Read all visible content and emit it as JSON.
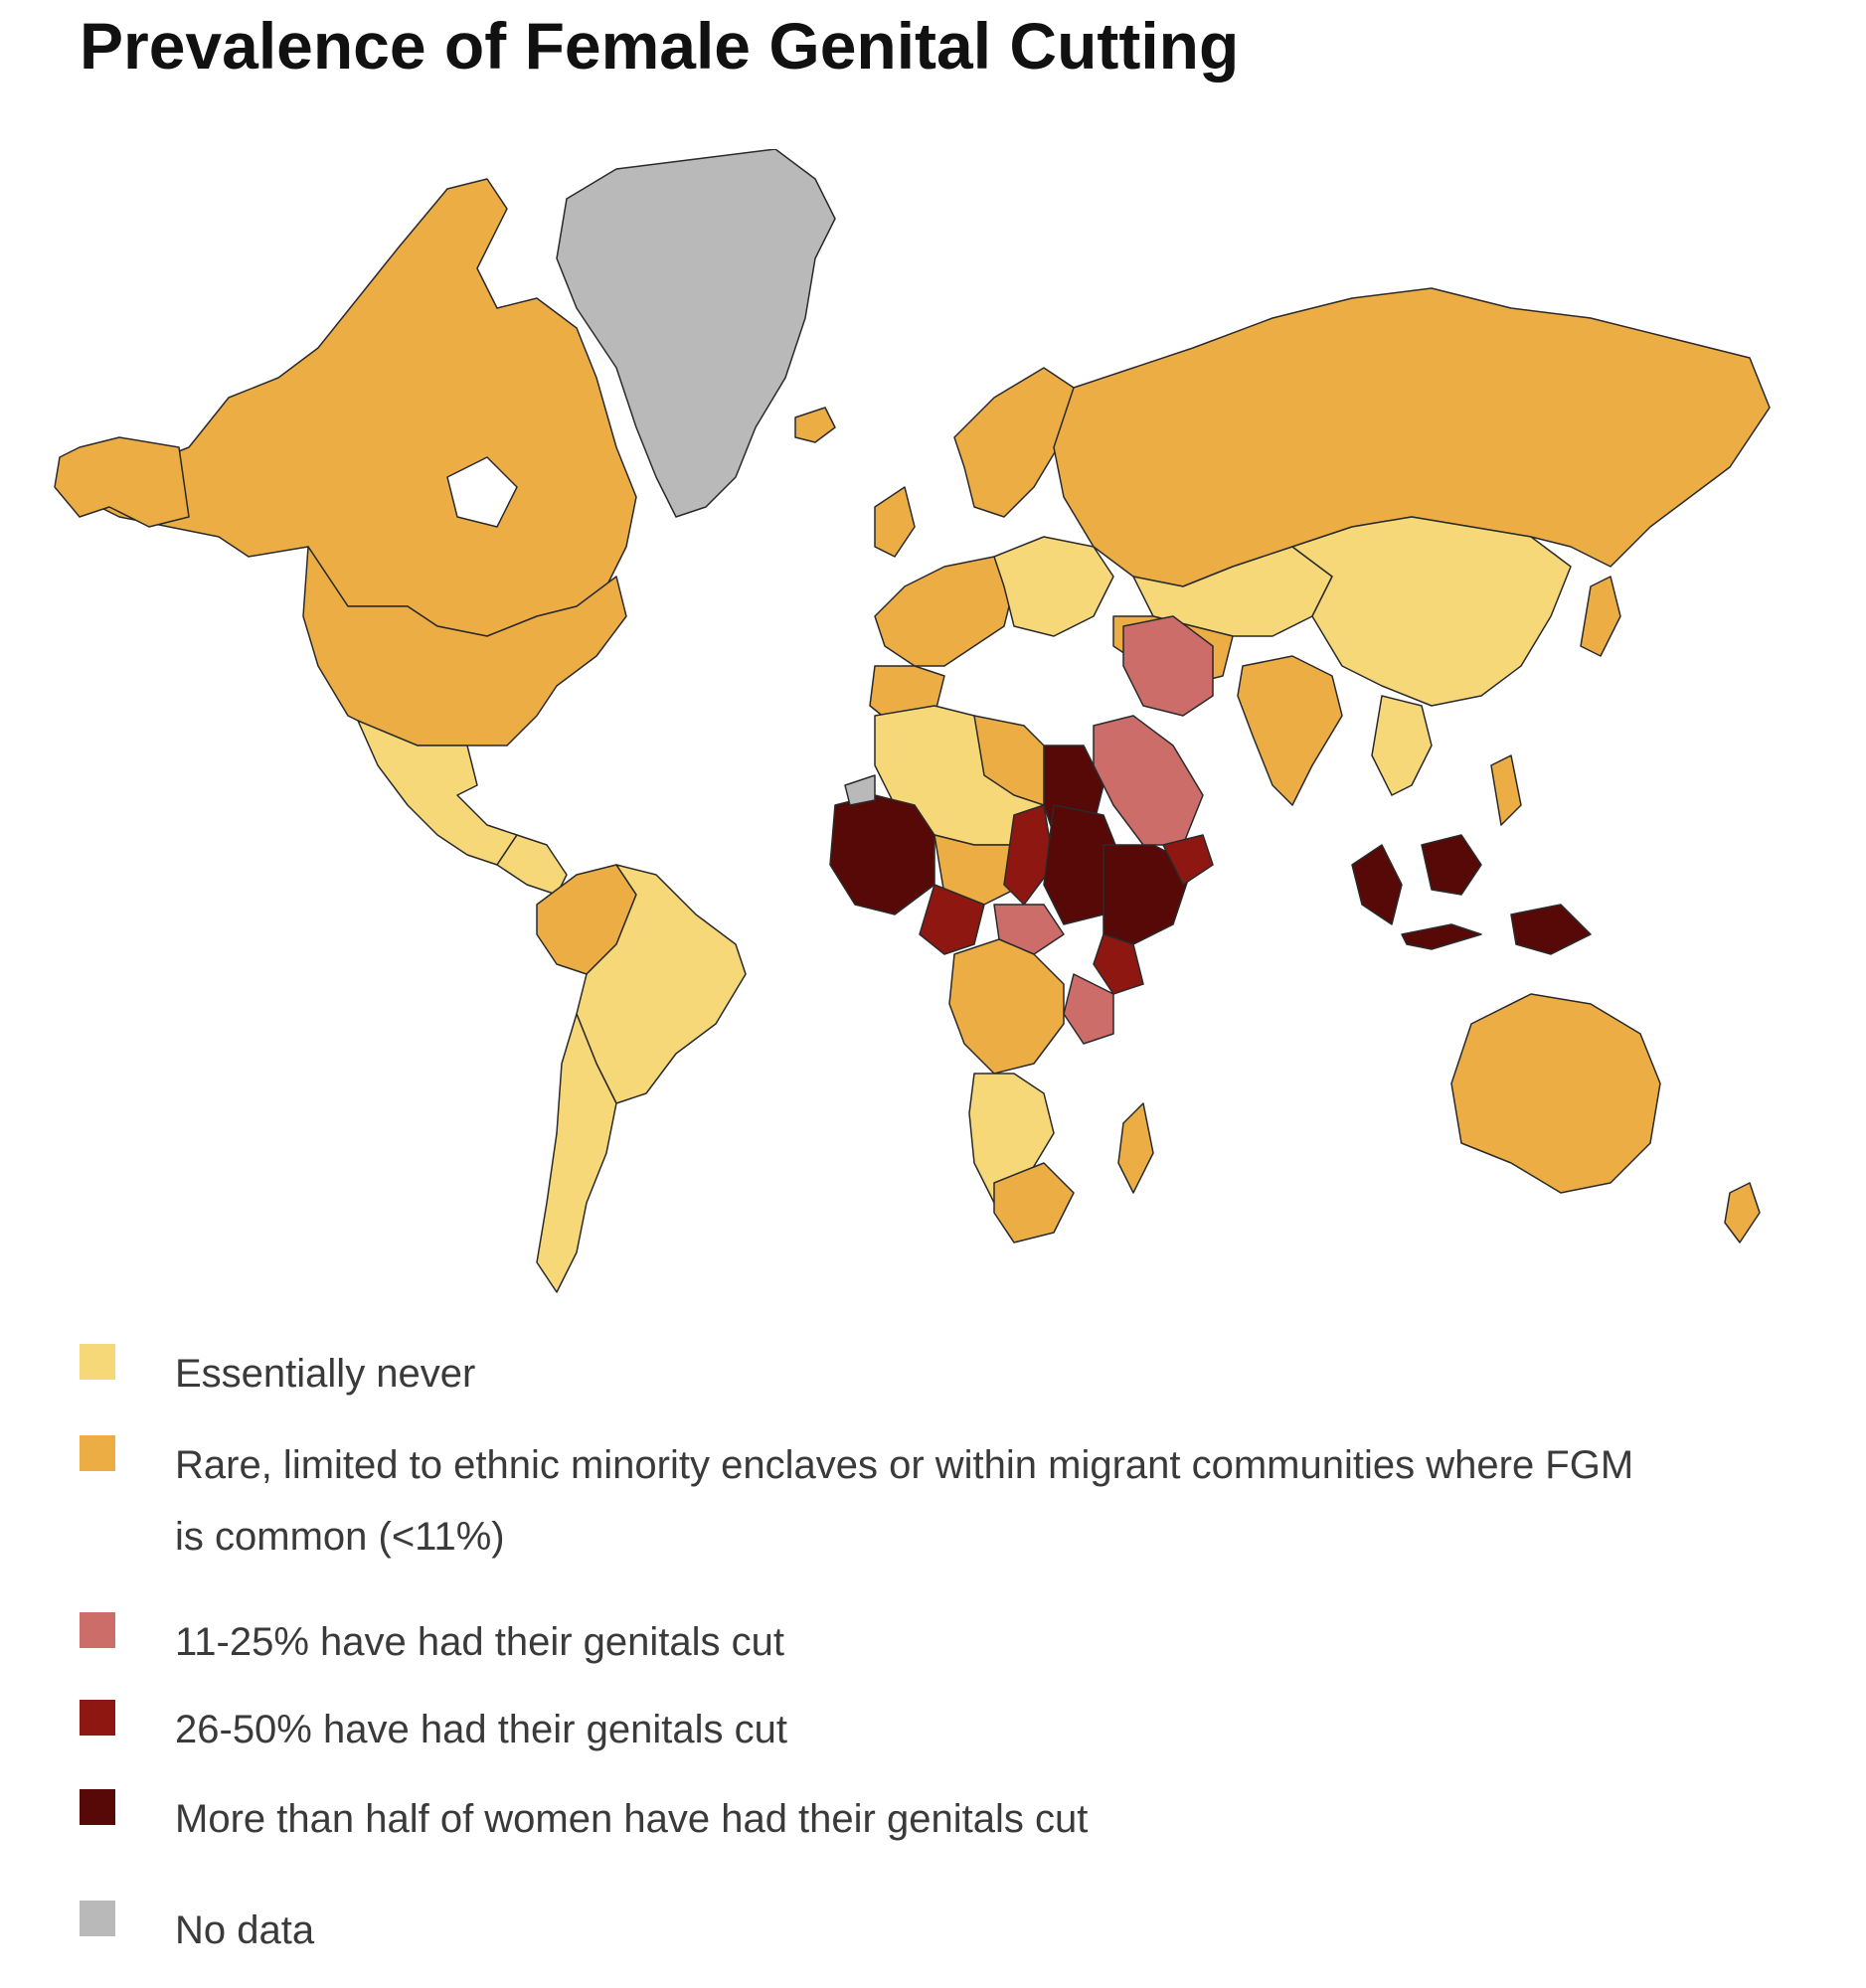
{
  "title": "Prevalence of Female Genital Cutting",
  "colors": {
    "essentially_never": "#f6d878",
    "rare": "#ecad45",
    "p11_25": "#cd6d6a",
    "p26_50": "#8f1711",
    "over_half": "#560907",
    "no_data": "#b9b9b9",
    "border": "#2a2a2a"
  },
  "legend": [
    {
      "key": "essentially_never",
      "label": "Essentially never"
    },
    {
      "key": "rare",
      "label": "Rare, limited to ethnic minority enclaves or within migrant communities where FGM is common (<11%)"
    },
    {
      "key": "p11_25",
      "label": "11-25% have had their genitals cut"
    },
    {
      "key": "p26_50",
      "label": "26-50% have had their genitals cut"
    },
    {
      "key": "over_half",
      "label": "More than half of women have had their genitals cut"
    },
    {
      "key": "no_data",
      "label": "No data"
    }
  ]
}
